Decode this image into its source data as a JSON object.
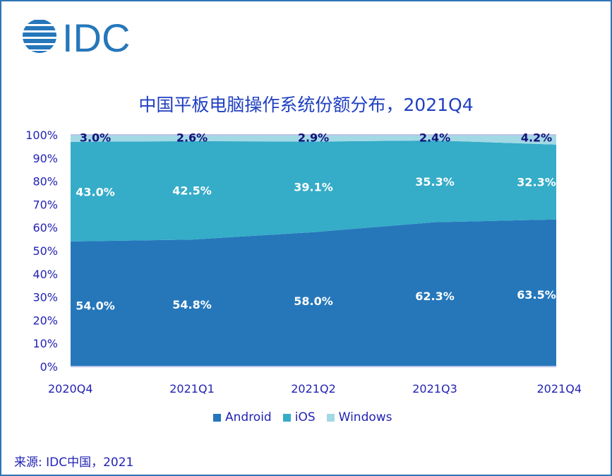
{
  "logo_text": "IDC",
  "source": "来源: IDC中国，2021",
  "chart_data": {
    "type": "area",
    "stacked": true,
    "title": "中国平板电脑操作系统份额分布，2021Q4",
    "categories": [
      "2020Q4",
      "2021Q1",
      "2021Q2",
      "2021Q3",
      "2021Q4"
    ],
    "ylim": [
      0,
      100
    ],
    "yticks": [
      "0%",
      "10%",
      "20%",
      "30%",
      "40%",
      "50%",
      "60%",
      "70%",
      "80%",
      "90%",
      "100%"
    ],
    "legend_position": "bottom",
    "series": [
      {
        "name": "Android",
        "values": [
          54.0,
          54.8,
          58.0,
          62.3,
          63.5
        ],
        "labels": [
          "54.0%",
          "54.8%",
          "58.0%",
          "62.3%",
          "63.5%"
        ],
        "color": "#2577BA"
      },
      {
        "name": "iOS",
        "values": [
          43.0,
          42.5,
          39.1,
          35.3,
          32.3
        ],
        "labels": [
          "43.0%",
          "42.5%",
          "39.1%",
          "35.3%",
          "32.3%"
        ],
        "color": "#35ACC8"
      },
      {
        "name": "Windows",
        "values": [
          3.0,
          2.6,
          2.9,
          2.4,
          4.2
        ],
        "labels": [
          "3.0%",
          "2.6%",
          "2.9%",
          "2.4%",
          "4.2%"
        ],
        "color": "#A2D9E5"
      }
    ]
  }
}
